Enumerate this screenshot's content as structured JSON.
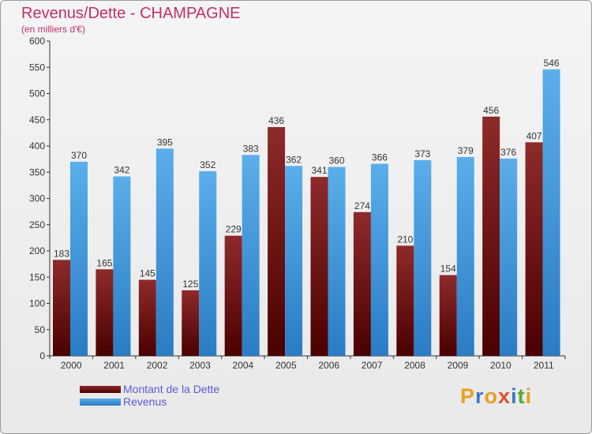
{
  "chart_data": {
    "type": "bar",
    "title": "Revenus/Dette - CHAMPAGNE",
    "subtitle": "(en milliers d'€)",
    "categories": [
      "2000",
      "2001",
      "2002",
      "2003",
      "2004",
      "2005",
      "2006",
      "2007",
      "2008",
      "2009",
      "2010",
      "2011"
    ],
    "series": [
      {
        "name": "Montant de la Dette",
        "color": "#7a1a1a",
        "values": [
          183,
          165,
          145,
          125,
          229,
          436,
          341,
          274,
          210,
          154,
          456,
          407
        ]
      },
      {
        "name": "Revenus",
        "color": "#4a9ee0",
        "values": [
          370,
          342,
          395,
          352,
          383,
          362,
          360,
          366,
          373,
          379,
          376,
          546
        ]
      }
    ],
    "ylim": [
      0,
      600
    ],
    "yticks": [
      0,
      50,
      100,
      150,
      200,
      250,
      300,
      350,
      400,
      450,
      500,
      550,
      600
    ],
    "grid": false,
    "legend_position": "bottom-left"
  },
  "branding": {
    "logo_text": "Proxiti",
    "letter_colors": [
      "#e8a020",
      "#3b78c8",
      "#e8a020",
      "#e05030",
      "#3b78c8",
      "#55aa33",
      "#e8a020"
    ]
  }
}
